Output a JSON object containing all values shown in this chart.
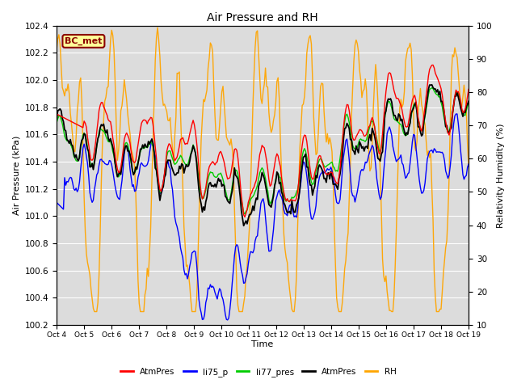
{
  "title": "Air Pressure and RH",
  "xlabel": "Time",
  "ylabel_left": "Air Pressure (kPa)",
  "ylabel_right": "Relativity Humidity (%)",
  "annotation": "BC_met",
  "ylim_left": [
    100.2,
    102.4
  ],
  "ylim_right": [
    10,
    100
  ],
  "yticks_left": [
    100.2,
    100.4,
    100.6,
    100.8,
    101.0,
    101.2,
    101.4,
    101.6,
    101.8,
    102.0,
    102.2,
    102.4
  ],
  "yticks_right": [
    10,
    20,
    30,
    40,
    50,
    60,
    70,
    80,
    90,
    100
  ],
  "xtick_labels": [
    "Oct 4",
    "Oct 5",
    "Oct 6",
    "Oct 7",
    "Oct 8",
    "Oct 9",
    "Oct 10",
    "Oct 11",
    "Oct 12",
    "Oct 13",
    "Oct 14",
    "Oct 15",
    "Oct 16",
    "Oct 17",
    "Oct 18",
    "Oct 19"
  ],
  "colors": {
    "AtmPres_red": "#FF0000",
    "li75_p_blue": "#0000FF",
    "li77_pres_green": "#00CC00",
    "AtmPres_black": "#000000",
    "RH_orange": "#FFA500"
  },
  "legend_entries": [
    "AtmPres",
    "li75_p",
    "li77_pres",
    "AtmPres",
    "RH"
  ],
  "plot_bg": "#DCDCDC",
  "fig_bg": "#FFFFFF",
  "grid_color": "#FFFFFF",
  "n_days": 15,
  "n_pts": 360
}
